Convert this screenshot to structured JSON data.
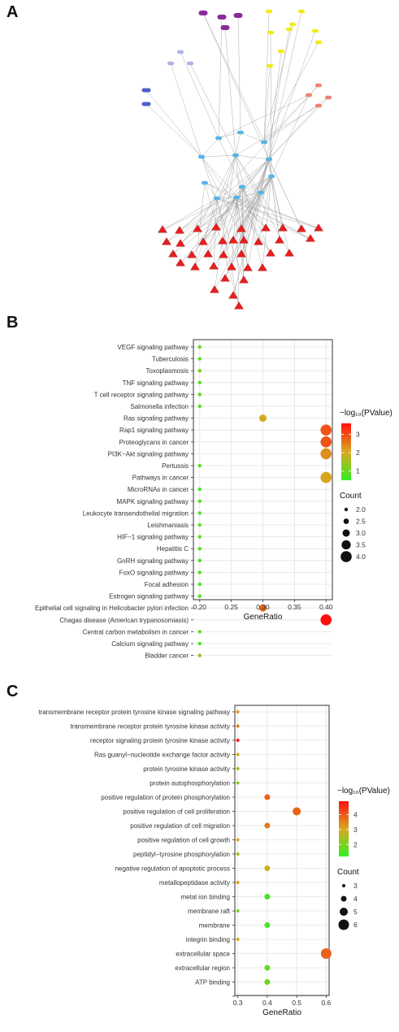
{
  "panels": {
    "a_label": "A",
    "b_label": "B",
    "c_label": "C"
  },
  "colors": {
    "low": "#33ee22",
    "mid": "#d9a820",
    "high": "#ff1010",
    "network_purple": "#8a2a9a",
    "network_yellow": "#f2ea1a",
    "network_blue": "#4f5fc8",
    "network_cyan": "#5ab4e4",
    "network_red": "#e81e1e",
    "network_lavender": "#aab2e6"
  },
  "chart_data": [
    {
      "type": "network",
      "panel": "A",
      "title": "",
      "nodes": [
        {
          "id": "p1",
          "group": "purple",
          "label": ""
        },
        {
          "id": "p2",
          "group": "purple",
          "label": ""
        },
        {
          "id": "p3",
          "group": "purple",
          "label": ""
        },
        {
          "id": "p4",
          "group": "purple",
          "label": ""
        },
        {
          "id": "y1",
          "group": "yellow",
          "label": ""
        },
        {
          "id": "y2",
          "group": "yellow",
          "label": ""
        },
        {
          "id": "y3",
          "group": "yellow",
          "label": ""
        },
        {
          "id": "y4",
          "group": "yellow",
          "label": ""
        },
        {
          "id": "y5",
          "group": "yellow",
          "label": ""
        },
        {
          "id": "y6",
          "group": "yellow",
          "label": ""
        },
        {
          "id": "y7",
          "group": "yellow",
          "label": ""
        },
        {
          "id": "y8",
          "group": "yellow",
          "label": ""
        },
        {
          "id": "y9",
          "group": "yellow",
          "label": ""
        },
        {
          "id": "v1",
          "group": "lavender",
          "label": ""
        },
        {
          "id": "v2",
          "group": "lavender",
          "label": ""
        },
        {
          "id": "v3",
          "group": "lavender",
          "label": ""
        },
        {
          "id": "b1",
          "group": "blue",
          "label": ""
        },
        {
          "id": "b2",
          "group": "blue",
          "label": ""
        },
        {
          "id": "r1",
          "group": "salmon",
          "label": ""
        },
        {
          "id": "r2",
          "group": "salmon",
          "label": ""
        },
        {
          "id": "r3",
          "group": "salmon",
          "label": ""
        },
        {
          "id": "r4",
          "group": "salmon",
          "label": ""
        },
        {
          "id": "c1",
          "group": "cyan",
          "label": ""
        },
        {
          "id": "c2",
          "group": "cyan",
          "label": ""
        },
        {
          "id": "c3",
          "group": "cyan",
          "label": ""
        },
        {
          "id": "c4",
          "group": "cyan",
          "label": ""
        },
        {
          "id": "c5",
          "group": "cyan",
          "label": ""
        },
        {
          "id": "c6",
          "group": "cyan",
          "label": ""
        },
        {
          "id": "c7",
          "group": "cyan",
          "label": ""
        },
        {
          "id": "c8",
          "group": "cyan",
          "label": ""
        },
        {
          "id": "c9",
          "group": "cyan",
          "label": ""
        },
        {
          "id": "c10",
          "group": "cyan",
          "label": ""
        },
        {
          "id": "c11",
          "group": "cyan",
          "label": ""
        },
        {
          "id": "c12",
          "group": "cyan",
          "label": ""
        },
        {
          "id": "t1",
          "group": "triangle",
          "label": ""
        },
        {
          "id": "t2",
          "group": "triangle",
          "label": ""
        },
        {
          "id": "t3",
          "group": "triangle",
          "label": ""
        },
        {
          "id": "t4",
          "group": "triangle",
          "label": ""
        },
        {
          "id": "t5",
          "group": "triangle",
          "label": ""
        },
        {
          "id": "t6",
          "group": "triangle",
          "label": ""
        },
        {
          "id": "t7",
          "group": "triangle",
          "label": ""
        },
        {
          "id": "t8",
          "group": "triangle",
          "label": ""
        },
        {
          "id": "t9",
          "group": "triangle",
          "label": ""
        },
        {
          "id": "t10",
          "group": "triangle",
          "label": ""
        },
        {
          "id": "t11",
          "group": "triangle",
          "label": ""
        },
        {
          "id": "t12",
          "group": "triangle",
          "label": ""
        },
        {
          "id": "t13",
          "group": "triangle",
          "label": ""
        },
        {
          "id": "t14",
          "group": "triangle",
          "label": ""
        },
        {
          "id": "t15",
          "group": "triangle",
          "label": ""
        },
        {
          "id": "t16",
          "group": "triangle",
          "label": ""
        },
        {
          "id": "t17",
          "group": "triangle",
          "label": ""
        },
        {
          "id": "t18",
          "group": "triangle",
          "label": ""
        },
        {
          "id": "t19",
          "group": "triangle",
          "label": ""
        },
        {
          "id": "t20",
          "group": "triangle",
          "label": ""
        },
        {
          "id": "t21",
          "group": "triangle",
          "label": ""
        },
        {
          "id": "t22",
          "group": "triangle",
          "label": ""
        },
        {
          "id": "t23",
          "group": "triangle",
          "label": ""
        },
        {
          "id": "t24",
          "group": "triangle",
          "label": ""
        },
        {
          "id": "t25",
          "group": "triangle",
          "label": ""
        },
        {
          "id": "t26",
          "group": "triangle",
          "label": ""
        },
        {
          "id": "t27",
          "group": "triangle",
          "label": ""
        },
        {
          "id": "t28",
          "group": "triangle",
          "label": ""
        },
        {
          "id": "t29",
          "group": "triangle",
          "label": ""
        },
        {
          "id": "t30",
          "group": "triangle",
          "label": ""
        },
        {
          "id": "t31",
          "group": "triangle",
          "label": ""
        },
        {
          "id": "t32",
          "group": "triangle",
          "label": ""
        },
        {
          "id": "t33",
          "group": "triangle",
          "label": ""
        },
        {
          "id": "t34",
          "group": "triangle",
          "label": ""
        },
        {
          "id": "t35",
          "group": "triangle",
          "label": ""
        },
        {
          "id": "t36",
          "group": "triangle",
          "label": ""
        }
      ]
    },
    {
      "type": "scatter",
      "panel": "B",
      "title": "",
      "xlabel": "GeneRatio",
      "xlim": [
        0.19,
        0.41
      ],
      "xticks": [
        0.2,
        0.25,
        0.3,
        0.35,
        0.4
      ],
      "xtick_labels": [
        "0.20",
        "0.25",
        "0.30",
        "0.35",
        "0.40"
      ],
      "grid": true,
      "legend_color_title": "−log₁₀(PValue)",
      "legend_color_range": [
        0.5,
        3.6
      ],
      "legend_color_ticks": [
        1,
        2,
        3
      ],
      "legend_size_title": "Count",
      "legend_size_values": [
        2.0,
        2.5,
        3.0,
        3.5,
        4.0
      ],
      "legend_size_labels": [
        "2.0",
        "2.5",
        "3.0",
        "3.5",
        "4.0"
      ],
      "legend_placement": "right",
      "categories": [
        "VEGF signaling pathway",
        "Tuberculosis",
        "Toxoplasmosis",
        "TNF signaling pathway",
        "T cell receptor signaling pathway",
        "Salmonella infection",
        "Ras signaling pathway",
        "Rap1 signaling pathway",
        "Proteoglycans in cancer",
        "PI3K−Akt signaling pathway",
        "Pertussis",
        "Pathways in cancer",
        "MicroRNAs in cancer",
        "MAPK signaling pathway",
        "Leukocyte transendothelial migration",
        "Leishmaniasis",
        "HIF−1 signaling pathway",
        "Hepatitis C",
        "GnRH signaling pathway",
        "FoxO signaling pathway",
        "Focal adhesion",
        "Estrogen signaling pathway",
        "Epithelial cell signaling in Helicobacter pylori infection",
        "Chagas disease (American trypanosomiasis)",
        "Central carbon metabolism in cancer",
        "Calcium signaling pathway",
        "Bladder cancer"
      ],
      "x": [
        0.2,
        0.2,
        0.2,
        0.2,
        0.2,
        0.2,
        0.3,
        0.4,
        0.4,
        0.4,
        0.2,
        0.4,
        0.2,
        0.2,
        0.2,
        0.2,
        0.2,
        0.2,
        0.2,
        0.2,
        0.2,
        0.2,
        0.3,
        0.4,
        0.2,
        0.2,
        0.2
      ],
      "count": [
        2,
        2,
        2,
        2,
        2,
        2,
        3,
        4,
        4,
        4,
        2,
        4,
        2,
        2,
        2,
        2,
        2,
        2,
        2,
        2,
        2,
        2,
        3,
        4,
        2,
        2,
        2
      ],
      "neglog10p": [
        1.0,
        0.9,
        1.1,
        0.9,
        0.9,
        0.9,
        2.0,
        2.9,
        2.9,
        2.3,
        0.9,
        2.1,
        0.6,
        0.7,
        0.8,
        0.8,
        0.9,
        0.8,
        0.8,
        0.8,
        0.6,
        0.8,
        2.7,
        3.6,
        1.0,
        0.6,
        1.4
      ]
    },
    {
      "type": "scatter",
      "panel": "C",
      "title": "",
      "xlabel": "GeneRatio",
      "xlim": [
        0.29,
        0.61
      ],
      "xticks": [
        0.3,
        0.4,
        0.5,
        0.6
      ],
      "xtick_labels": [
        "0.3",
        "0.4",
        "0.5",
        "0.6"
      ],
      "grid": true,
      "legend_color_title": "−log₁₀(PValue)",
      "legend_color_range": [
        1.2,
        4.9
      ],
      "legend_color_ticks": [
        2,
        3,
        4
      ],
      "legend_size_title": "Count",
      "legend_size_values": [
        3,
        4,
        5,
        6
      ],
      "legend_size_labels": [
        "3",
        "4",
        "5",
        "6"
      ],
      "legend_placement": "right",
      "categories": [
        "transmembrane receptor protein tyrosine kinase signaling pathway",
        "transmembrane receptor protein tyrosine kinase activity",
        "receptor signaling protein tyrosine kinase activity",
        "Ras guanyl−nucleotide exchange factor activity",
        "protein tyrosine kinase activity",
        "protein autophosphorylation",
        "positive regulation of protein phosphorylation",
        "positive regulation of cell proliferation",
        "positive regulation of cell migration",
        "positive regulation of cell growth",
        "peptidyl−tyrosine phosphorylation",
        "negative regulation of apoptotic process",
        "metallopeptidase activity",
        "metal ion binding",
        "membrane raft",
        "membrane",
        "integrin binding",
        "extracellular space",
        "extracellular region",
        "ATP binding",
        ""
      ],
      "x": [
        0.3,
        0.3,
        0.3,
        0.3,
        0.3,
        0.3,
        0.4,
        0.5,
        0.4,
        0.3,
        0.3,
        0.4,
        0.3,
        0.4,
        0.3,
        0.4,
        0.3,
        0.6,
        0.4,
        0.4,
        null
      ],
      "count": [
        3,
        3,
        3,
        3,
        3,
        3,
        4,
        5,
        4,
        3,
        3,
        4,
        3,
        4,
        3,
        4,
        3,
        6,
        4,
        4,
        null
      ],
      "neglog10p": [
        3.2,
        3.6,
        4.8,
        2.8,
        2.4,
        2.2,
        3.9,
        3.9,
        3.6,
        3.0,
        2.3,
        2.9,
        3.2,
        1.4,
        2.0,
        1.5,
        3.0,
        3.9,
        1.7,
        1.8,
        null
      ]
    }
  ]
}
